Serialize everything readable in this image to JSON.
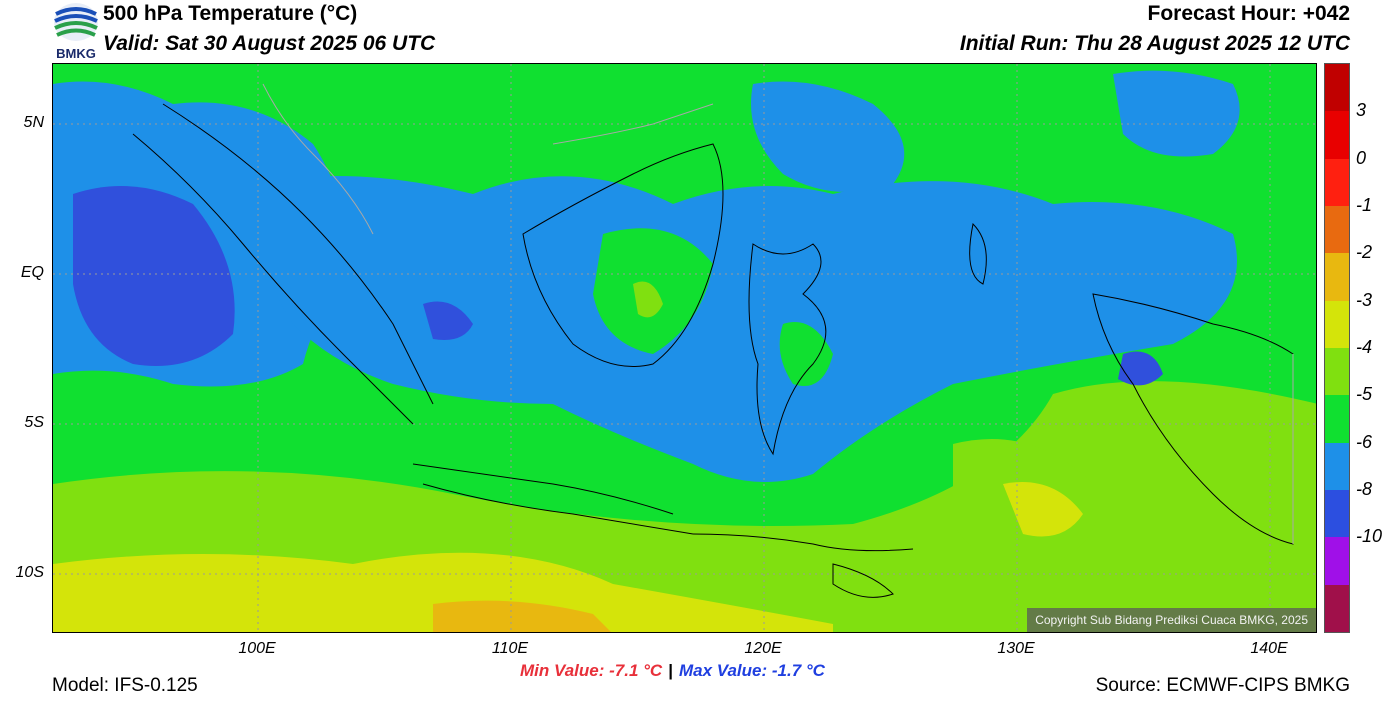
{
  "header": {
    "title": "500 hPa Temperature (°C)",
    "valid": "Valid: Sat 30 August 2025 06 UTC",
    "forecast_hour": "Forecast Hour: +042",
    "initial_run": "Initial Run: Thu 28 August 2025 12 UTC"
  },
  "logo": {
    "text": "BMKG"
  },
  "map": {
    "lat_labels": [
      "5N",
      "EQ",
      "5S",
      "10S"
    ],
    "lon_labels": [
      "100E",
      "110E",
      "120E",
      "130E",
      "140E"
    ],
    "copyright": "Copyright Sub Bidang Prediksi Cuaca BMKG, 2025",
    "background_colors": {
      "ocean_blue": "#1e90e8",
      "deep_blue": "#3050dc",
      "green": "#10e030",
      "light_green": "#80e010",
      "yellow": "#d4e40a",
      "orange": "#e8a010"
    }
  },
  "stats": {
    "min": "Min Value: -7.1 °C",
    "separator": "|",
    "max": "Max Value: -1.7 °C"
  },
  "footer": {
    "model": "Model: IFS-0.125",
    "source": "Source: ECMWF-CIPS BMKG"
  },
  "colorbar": {
    "labels": [
      "3",
      "0",
      "-1",
      "-2",
      "-3",
      "-4",
      "-5",
      "-6",
      "-8",
      "-10"
    ],
    "colors": [
      "#c00000",
      "#e80000",
      "#ff2010",
      "#e86a10",
      "#e8b810",
      "#d4e40a",
      "#80e010",
      "#10e030",
      "#1e90e8",
      "#2c4fe0",
      "#a010e8",
      "#a0104a"
    ]
  }
}
